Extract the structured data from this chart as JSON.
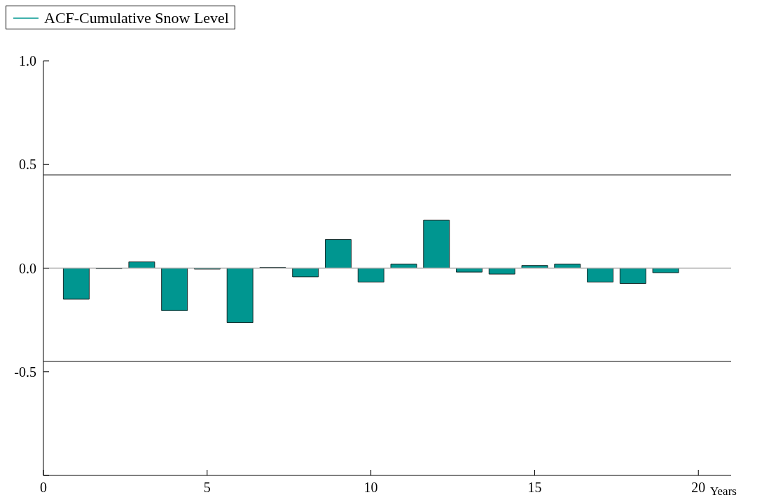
{
  "chart_data": {
    "type": "bar",
    "xlabel": "Years",
    "x": [
      1,
      2,
      3,
      4,
      5,
      6,
      7,
      8,
      9,
      10,
      11,
      12,
      13,
      14,
      15,
      16,
      17,
      18,
      19
    ],
    "series": [
      {
        "name": "ACF-Cumulative Snow Level",
        "color": "#009690",
        "values": [
          -0.15,
          -0.003,
          0.03,
          -0.205,
          -0.005,
          -0.263,
          0.003,
          -0.042,
          0.138,
          -0.067,
          0.019,
          0.231,
          -0.019,
          -0.029,
          0.013,
          0.019,
          -0.067,
          -0.074,
          -0.022
        ]
      }
    ],
    "xlim": [
      0,
      21
    ],
    "xticks": [
      0,
      5,
      10,
      15,
      20
    ],
    "ylim": [
      -1.0,
      1.0
    ],
    "yticks": [
      {
        "value": -1.0,
        "label": null
      },
      {
        "value": -0.5,
        "label": "-0.5"
      },
      {
        "value": 0,
        "label": "0.0"
      },
      {
        "value": 0.5,
        "label": "0.5"
      },
      {
        "value": 1.0,
        "label": "1.0"
      }
    ],
    "ref_lines": [
      {
        "axis": "y",
        "value": 0.45,
        "color": "#333333"
      },
      {
        "axis": "y",
        "value": -0.45,
        "color": "#333333"
      },
      {
        "axis": "y",
        "value": 0,
        "color": "#aaaaaa"
      }
    ],
    "grid": false,
    "legend": "top left"
  }
}
